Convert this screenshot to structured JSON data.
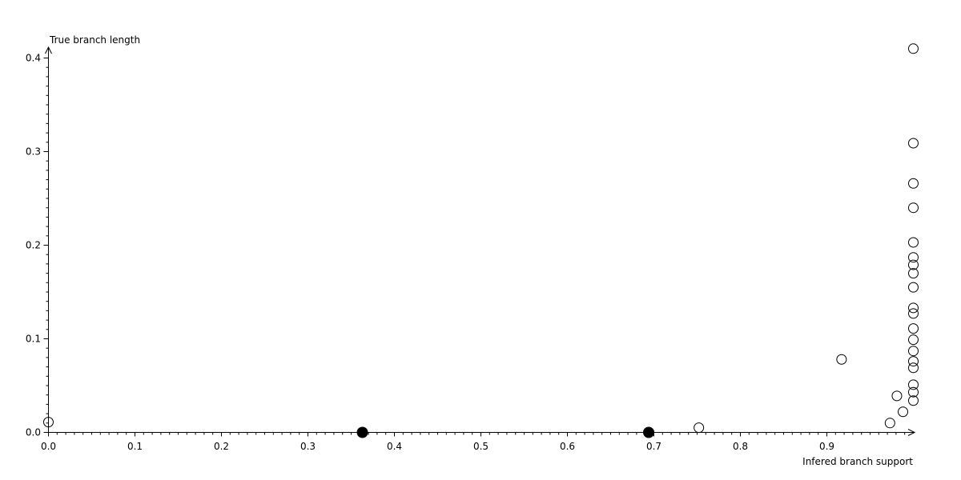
{
  "chart_data": {
    "type": "scatter",
    "title": "",
    "xlabel": "Infered branch support",
    "ylabel": "True branch length",
    "xlim": [
      0.0,
      1.0
    ],
    "ylim": [
      0.0,
      0.41
    ],
    "grid": false,
    "legend": "none",
    "axis_color": "#000000",
    "background_color": "#ffffff",
    "x_tick_labels": [
      "0.0",
      "0.1",
      "0.2",
      "0.3",
      "0.4",
      "0.5",
      "0.6",
      "0.7",
      "0.8",
      "0.9"
    ],
    "y_tick_labels": [
      "0.0",
      "0.1",
      "0.2",
      "0.3",
      "0.4"
    ],
    "minor_tick_step": 0.01,
    "series": [
      {
        "name": "open-circle-points",
        "marker": "open-circle",
        "marker_color": "#000000",
        "points": [
          [
            0.0,
            0.011
          ],
          [
            0.752,
            0.005
          ],
          [
            0.917,
            0.078
          ],
          [
            0.973,
            0.01
          ],
          [
            0.981,
            0.039
          ],
          [
            0.988,
            0.022
          ],
          [
            1.0,
            0.034
          ],
          [
            1.0,
            0.043
          ],
          [
            1.0,
            0.051
          ],
          [
            1.0,
            0.069
          ],
          [
            1.0,
            0.076
          ],
          [
            1.0,
            0.087
          ],
          [
            1.0,
            0.099
          ],
          [
            1.0,
            0.111
          ],
          [
            1.0,
            0.127
          ],
          [
            1.0,
            0.133
          ],
          [
            1.0,
            0.155
          ],
          [
            1.0,
            0.17
          ],
          [
            1.0,
            0.179
          ],
          [
            1.0,
            0.187
          ],
          [
            1.0,
            0.203
          ],
          [
            1.0,
            0.24
          ],
          [
            1.0,
            0.266
          ],
          [
            1.0,
            0.309
          ],
          [
            1.0,
            0.41
          ]
        ]
      },
      {
        "name": "filled-circle-points",
        "marker": "filled-circle",
        "marker_color": "#000000",
        "points": [
          [
            0.363,
            0.0
          ],
          [
            0.694,
            0.0
          ]
        ]
      }
    ]
  }
}
